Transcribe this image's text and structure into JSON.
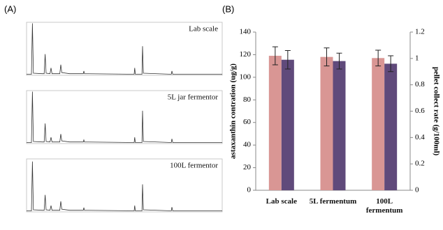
{
  "chart_data": [
    {
      "type": "line",
      "panel_label": "(A)",
      "title": "Lab scale",
      "xlim": [
        0,
        100
      ],
      "ylim": [
        0,
        100
      ],
      "color": "#333333",
      "x": [
        0,
        2.5,
        3,
        3.5,
        8,
        9,
        9.5,
        10,
        12,
        12.5,
        13,
        17,
        17.5,
        18,
        22,
        29,
        29.3,
        29.6,
        55,
        55.3,
        55.6,
        59,
        59.3,
        59.7,
        74,
        74.3,
        74.7,
        100
      ],
      "values": [
        2,
        2,
        98,
        4,
        3,
        3,
        40,
        4,
        3,
        14,
        3,
        3,
        20,
        5,
        3,
        3,
        8,
        3,
        2,
        14,
        2,
        2,
        55,
        4,
        2,
        8,
        2,
        2
      ]
    },
    {
      "type": "line",
      "title": "5L jar fermentor",
      "xlim": [
        0,
        100
      ],
      "ylim": [
        0,
        100
      ],
      "color": "#333333",
      "x": [
        0,
        2.5,
        3,
        3.5,
        8,
        9,
        9.5,
        10,
        12,
        12.5,
        13,
        17,
        17.5,
        18,
        22,
        29,
        29.3,
        29.6,
        55,
        55.3,
        55.6,
        59,
        59.3,
        59.7,
        74,
        74.3,
        74.7,
        100
      ],
      "values": [
        2,
        2,
        98,
        4,
        3,
        3,
        38,
        4,
        3,
        12,
        3,
        3,
        18,
        5,
        3,
        3,
        7,
        3,
        2,
        12,
        2,
        2,
        62,
        4,
        2,
        9,
        2,
        2
      ]
    },
    {
      "type": "line",
      "title": "100L fermentor",
      "xlim": [
        0,
        100
      ],
      "ylim": [
        0,
        100
      ],
      "color": "#333333",
      "x": [
        0,
        2.5,
        3,
        3.5,
        8,
        9,
        9.5,
        10,
        12,
        12.5,
        13,
        17,
        17.5,
        18,
        22,
        29,
        29.3,
        29.6,
        55,
        55.3,
        55.6,
        59,
        59.3,
        59.7,
        74,
        74.3,
        74.7,
        100
      ],
      "values": [
        2,
        2,
        95,
        4,
        3,
        3,
        32,
        4,
        3,
        12,
        3,
        3,
        20,
        5,
        3,
        3,
        8,
        3,
        2,
        12,
        2,
        2,
        52,
        4,
        2,
        9,
        2,
        2
      ]
    },
    {
      "type": "bar",
      "panel_label": "(B)",
      "ylabel": "astaxanthin contration (ug/g)",
      "y2label": "pellet collect rate (g/100ml)",
      "categories": [
        "Lab scale",
        "5L fermentum",
        "100L fermentum"
      ],
      "series": [
        {
          "color": "#d99694",
          "values": [
            119,
            118,
            117
          ],
          "errors": [
            8,
            8,
            7
          ]
        },
        {
          "color": "#604a7b",
          "axis": "y2",
          "values": [
            0.99,
            0.98,
            0.96
          ],
          "errors": [
            0.07,
            0.06,
            0.06
          ]
        }
      ],
      "ylim": [
        0,
        140
      ],
      "yticks": [
        0,
        20,
        40,
        60,
        80,
        100,
        120,
        140
      ],
      "y2lim": [
        0,
        1.2
      ],
      "y2ticks": [
        0,
        0.2,
        0.4,
        0.6,
        0.8,
        1,
        1.2
      ]
    }
  ]
}
